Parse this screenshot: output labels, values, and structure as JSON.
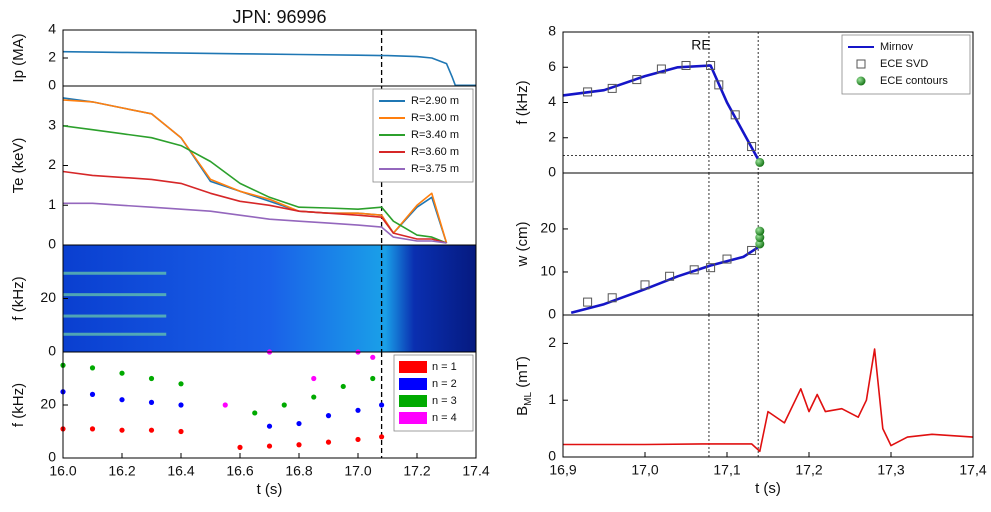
{
  "chart_data": [
    {
      "type": "line",
      "title": "JPN: 96996",
      "ylabel": "Ip (MA)",
      "xlim": [
        16.0,
        17.4
      ],
      "ylim": [
        0,
        4
      ],
      "yticks": [
        0,
        2,
        4
      ],
      "vlines": [
        17.08
      ],
      "x": [
        16.0,
        16.2,
        16.4,
        16.6,
        16.8,
        17.0,
        17.1,
        17.2,
        17.25,
        17.3,
        17.32,
        17.33,
        17.4
      ],
      "series": [
        {
          "color": "#1f77b4",
          "values": [
            2.45,
            2.4,
            2.35,
            2.3,
            2.25,
            2.2,
            2.17,
            2.1,
            2.0,
            1.6,
            0.6,
            0.05,
            0.05
          ]
        }
      ]
    },
    {
      "type": "line",
      "ylabel": "Te (keV)",
      "xlim": [
        16.0,
        17.4
      ],
      "ylim": [
        0,
        4
      ],
      "yticks": [
        0,
        1,
        2,
        3
      ],
      "vlines": [
        17.08
      ],
      "legend": "upper right",
      "x": [
        16.0,
        16.1,
        16.2,
        16.3,
        16.4,
        16.5,
        16.6,
        16.7,
        16.8,
        16.9,
        17.0,
        17.08,
        17.12,
        17.2,
        17.25,
        17.3
      ],
      "series": [
        {
          "name": "R=2.90 m",
          "color": "#1f77b4",
          "values": [
            3.7,
            3.6,
            3.45,
            3.3,
            2.7,
            1.6,
            1.35,
            1.1,
            0.85,
            0.8,
            0.8,
            0.75,
            0.3,
            0.95,
            1.2,
            0.05
          ]
        },
        {
          "name": "R=3.00 m",
          "color": "#ff7f0e",
          "values": [
            3.65,
            3.6,
            3.45,
            3.3,
            2.7,
            1.65,
            1.35,
            1.15,
            0.85,
            0.8,
            0.8,
            0.75,
            0.3,
            1.0,
            1.3,
            0.05
          ]
        },
        {
          "name": "R=3.40 m",
          "color": "#2ca02c",
          "values": [
            3.0,
            2.9,
            2.8,
            2.7,
            2.5,
            2.1,
            1.55,
            1.2,
            0.95,
            0.93,
            0.9,
            0.95,
            0.6,
            0.25,
            0.2,
            0.05
          ]
        },
        {
          "name": "R=3.60 m",
          "color": "#d62728",
          "values": [
            1.85,
            1.75,
            1.7,
            1.65,
            1.55,
            1.3,
            1.1,
            1.0,
            0.85,
            0.8,
            0.75,
            0.7,
            0.3,
            0.15,
            0.15,
            0.05
          ]
        },
        {
          "name": "R=3.75 m",
          "color": "#9467bd",
          "values": [
            1.05,
            1.05,
            1.0,
            0.95,
            0.9,
            0.85,
            0.75,
            0.65,
            0.6,
            0.55,
            0.5,
            0.45,
            0.2,
            0.1,
            0.1,
            0.05
          ]
        }
      ]
    },
    {
      "type": "spectrogram",
      "ylabel": "f (kHz)",
      "xlim": [
        16.0,
        17.4
      ],
      "ylim": [
        0,
        40
      ],
      "yticks": [
        0,
        20
      ],
      "vlines": [
        17.08
      ],
      "series": []
    },
    {
      "type": "scatter",
      "ylabel": "f (kHz)",
      "xlabel": "t (s)",
      "xlim": [
        16.0,
        17.4
      ],
      "ylim": [
        0,
        40
      ],
      "yticks": [
        0,
        20
      ],
      "vlines": [
        17.08
      ],
      "legend": "upper right",
      "xticks": [
        {
          "value": 16.0,
          "label": "16.0"
        },
        {
          "value": 16.2,
          "label": "16.2"
        },
        {
          "value": 16.4,
          "label": "16.4"
        },
        {
          "value": 16.6,
          "label": "16.6"
        },
        {
          "value": 16.8,
          "label": "16.8"
        },
        {
          "value": 17.0,
          "label": "17.0"
        },
        {
          "value": 17.2,
          "label": "17.2"
        },
        {
          "value": 17.4,
          "label": "17.4"
        }
      ],
      "series": [
        {
          "name": "n = 1",
          "color": "#ff0000",
          "x": [
            16.0,
            16.1,
            16.2,
            16.3,
            16.4,
            16.6,
            16.7,
            16.8,
            16.9,
            17.0,
            17.08
          ],
          "values": [
            11,
            11,
            10.5,
            10.5,
            10,
            4,
            4.5,
            5,
            6,
            7,
            8
          ]
        },
        {
          "name": "n = 2",
          "color": "#0000ff",
          "x": [
            16.0,
            16.1,
            16.2,
            16.3,
            16.4,
            16.7,
            16.8,
            16.9,
            17.0,
            17.08
          ],
          "values": [
            25,
            24,
            22,
            21,
            20,
            12,
            13,
            16,
            18,
            20
          ]
        },
        {
          "name": "n = 3",
          "color": "#00aa00",
          "x": [
            16.0,
            16.1,
            16.2,
            16.3,
            16.4,
            16.65,
            16.75,
            16.85,
            16.95,
            17.05
          ],
          "values": [
            35,
            34,
            32,
            30,
            28,
            17,
            20,
            23,
            27,
            30
          ]
        },
        {
          "name": "n = 4",
          "color": "#ff00ff",
          "x": [
            16.55,
            16.7,
            16.85,
            17.0,
            17.05
          ],
          "values": [
            20,
            40,
            30,
            40,
            38
          ]
        }
      ]
    },
    {
      "type": "line",
      "ylabel": "f (kHz)",
      "annotation": "RE",
      "xlim": [
        16.9,
        17.4
      ],
      "ylim": [
        0,
        8
      ],
      "yticks": [
        0,
        2,
        4,
        6,
        8
      ],
      "vlines": [
        17.078,
        17.138
      ],
      "hlines": [
        1
      ],
      "legend": "upper right",
      "series": [
        {
          "name": "Mirnov",
          "color": "#1515c8",
          "marker": "line",
          "x": [
            16.9,
            16.95,
            17.0,
            17.04,
            17.08,
            17.1,
            17.12,
            17.14
          ],
          "values": [
            4.4,
            4.7,
            5.5,
            6.0,
            6.1,
            4.0,
            2.3,
            0.6
          ]
        },
        {
          "name": "ECE SVD",
          "color": "#555555",
          "marker": "square",
          "x": [
            16.93,
            16.96,
            16.99,
            17.02,
            17.05,
            17.08,
            17.09,
            17.11,
            17.13
          ],
          "values": [
            4.6,
            4.8,
            5.3,
            5.9,
            6.1,
            6.1,
            5.0,
            3.3,
            1.5
          ]
        },
        {
          "name": "ECE contours",
          "color": "#1a8a1a",
          "marker": "circle",
          "x": [
            17.14
          ],
          "values": [
            0.6
          ]
        }
      ]
    },
    {
      "type": "line",
      "ylabel": "w (cm)",
      "xlim": [
        16.9,
        17.4
      ],
      "ylim": [
        0,
        33
      ],
      "yticks": [
        0,
        10,
        20
      ],
      "vlines": [
        17.078,
        17.138
      ],
      "series": [
        {
          "color": "#1515c8",
          "marker": "line",
          "x": [
            16.91,
            16.95,
            17.0,
            17.04,
            17.08,
            17.12,
            17.14
          ],
          "values": [
            0.5,
            2.5,
            6,
            9,
            11.5,
            13.5,
            16
          ]
        },
        {
          "color": "#555555",
          "marker": "square",
          "x": [
            16.93,
            16.96,
            17.0,
            17.03,
            17.06,
            17.08,
            17.1,
            17.13
          ],
          "values": [
            3,
            4,
            7,
            9,
            10.5,
            11,
            13,
            15
          ]
        },
        {
          "color": "#1a8a1a",
          "marker": "circle",
          "x": [
            17.14,
            17.14,
            17.14
          ],
          "values": [
            16.5,
            18,
            19.5
          ]
        }
      ]
    },
    {
      "type": "line",
      "ylabel": [
        "B",
        "ML",
        " (mT)"
      ],
      "xlabel": "t (s)",
      "xlim": [
        16.9,
        17.4
      ],
      "ylim": [
        0,
        2.5
      ],
      "yticks": [
        0,
        1,
        2
      ],
      "vlines": [
        17.078,
        17.138
      ],
      "xticks": [
        {
          "value": 16.9,
          "label": "16,9"
        },
        {
          "value": 17.0,
          "label": "17,0"
        },
        {
          "value": 17.1,
          "label": "17,1"
        },
        {
          "value": 17.2,
          "label": "17,2"
        },
        {
          "value": 17.3,
          "label": "17,3"
        },
        {
          "value": 17.4,
          "label": "17,4"
        }
      ],
      "series": [
        {
          "color": "#e01010",
          "marker": "line",
          "x": [
            16.9,
            17.0,
            17.07,
            17.13,
            17.14,
            17.15,
            17.17,
            17.19,
            17.2,
            17.21,
            17.22,
            17.24,
            17.26,
            17.27,
            17.28,
            17.29,
            17.3,
            17.32,
            17.35,
            17.4
          ],
          "values": [
            0.22,
            0.22,
            0.23,
            0.23,
            0.1,
            0.8,
            0.6,
            1.2,
            0.8,
            1.1,
            0.8,
            0.85,
            0.7,
            1.0,
            1.9,
            0.5,
            0.2,
            0.35,
            0.4,
            0.35
          ]
        }
      ]
    }
  ]
}
